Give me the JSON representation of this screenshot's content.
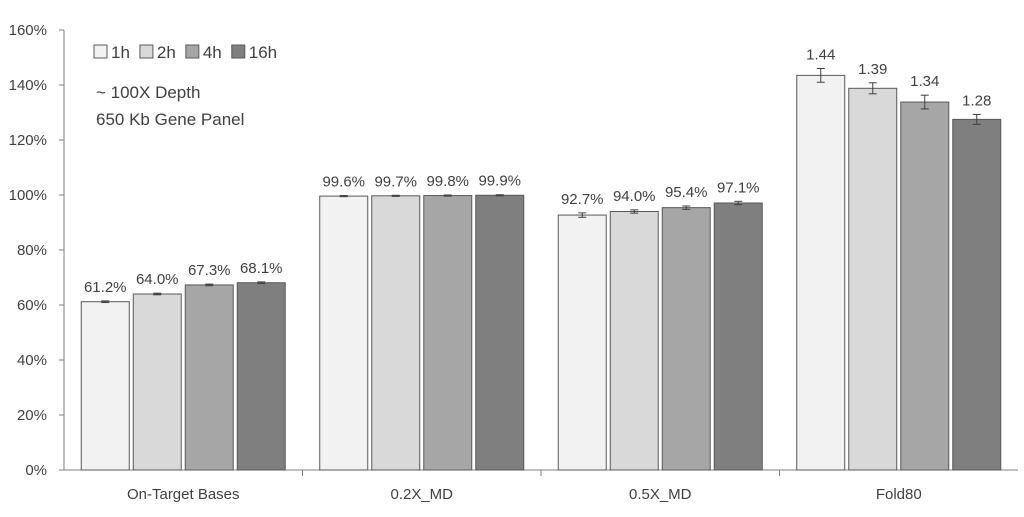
{
  "chart_data": {
    "type": "bar",
    "categories": [
      "On-Target Bases",
      "0.2X_MD",
      "0.5X_MD",
      "Fold80"
    ],
    "series": [
      {
        "name": "1h",
        "values": [
          61.2,
          99.6,
          92.7,
          143.5
        ],
        "errors": [
          0.3,
          0.2,
          0.8,
          2.5
        ],
        "color": "#f2f2f2"
      },
      {
        "name": "2h",
        "values": [
          64.0,
          99.7,
          94.0,
          138.8
        ],
        "errors": [
          0.3,
          0.2,
          0.6,
          2.0
        ],
        "color": "#d9d9d9"
      },
      {
        "name": "4h",
        "values": [
          67.3,
          99.8,
          95.4,
          133.8
        ],
        "errors": [
          0.3,
          0.2,
          0.6,
          2.5
        ],
        "color": "#a6a6a6"
      },
      {
        "name": "16h",
        "values": [
          68.1,
          99.9,
          97.1,
          127.5
        ],
        "errors": [
          0.3,
          0.2,
          0.6,
          1.8
        ],
        "color": "#7f7f7f"
      }
    ],
    "data_labels": [
      [
        "61.2%",
        "99.6%",
        "92.7%",
        "1.44"
      ],
      [
        "64.0%",
        "99.7%",
        "94.0%",
        "1.39"
      ],
      [
        "67.3%",
        "99.8%",
        "95.4%",
        "1.34"
      ],
      [
        "68.1%",
        "99.9%",
        "97.1%",
        "1.28"
      ]
    ],
    "yticks": [
      "0%",
      "20%",
      "40%",
      "60%",
      "80%",
      "100%",
      "120%",
      "140%",
      "160%"
    ],
    "ylim": [
      0,
      160
    ],
    "grid": false,
    "legend_position": "top-left",
    "annotations": [
      "~ 100X Depth",
      "650 Kb Gene Panel"
    ],
    "title": "",
    "xlabel": "",
    "ylabel": ""
  }
}
